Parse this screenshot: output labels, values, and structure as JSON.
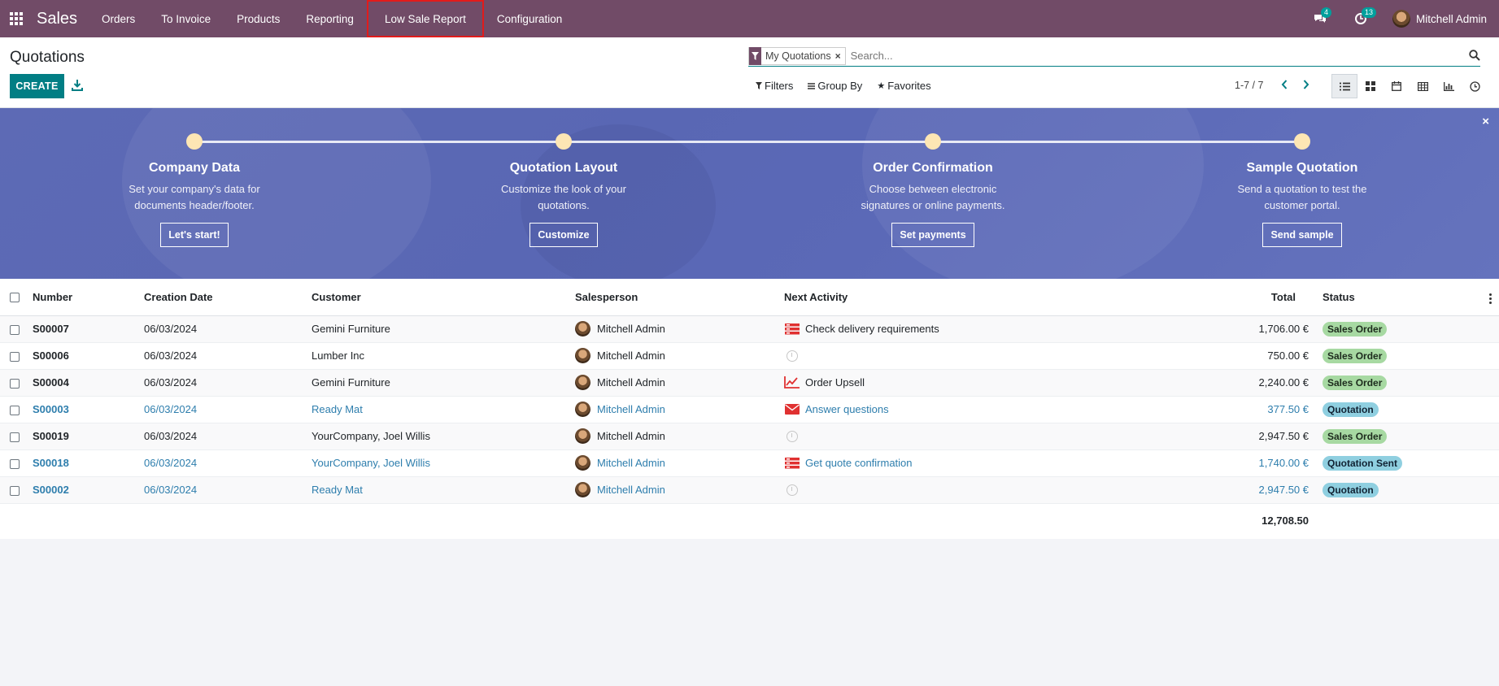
{
  "navbar": {
    "app_name": "Sales",
    "menu": [
      "Orders",
      "To Invoice",
      "Products",
      "Reporting",
      "Low Sale Report",
      "Configuration"
    ],
    "messages_count": "4",
    "activities_count": "13",
    "user_name": "Mitchell Admin",
    "brand_color": "#714b67"
  },
  "control_panel": {
    "title": "Quotations",
    "create_label": "CREATE",
    "search": {
      "facet": "My Quotations",
      "facet_remove": "×",
      "placeholder": "Search..."
    },
    "filters": [
      "Filters",
      "Group By",
      "Favorites"
    ],
    "pager": "1-7 / 7",
    "views": [
      "list-icon",
      "kanban-icon",
      "calendar-icon",
      "pivot-icon",
      "graph-icon",
      "activity-icon"
    ]
  },
  "onboarding": {
    "close": "×",
    "steps": [
      {
        "title": "Company Data",
        "desc1": "Set your company's data for",
        "desc2": "documents header/footer.",
        "button": "Let's start!"
      },
      {
        "title": "Quotation Layout",
        "desc1": "Customize the look of your",
        "desc2": "quotations.",
        "button": "Customize"
      },
      {
        "title": "Order Confirmation",
        "desc1": "Choose between electronic",
        "desc2": "signatures or online payments.",
        "button": "Set payments"
      },
      {
        "title": "Sample Quotation",
        "desc1": "Send a quotation to test the",
        "desc2": "customer portal.",
        "button": "Send sample"
      }
    ]
  },
  "table": {
    "headers": {
      "number": "Number",
      "date": "Creation Date",
      "customer": "Customer",
      "salesperson": "Salesperson",
      "activity": "Next Activity",
      "total": "Total",
      "status": "Status"
    },
    "rows": [
      {
        "number": "S00007",
        "date": "06/03/2024",
        "customer": "Gemini Furniture",
        "salesperson": "Mitchell Admin",
        "activity": "Check delivery requirements",
        "activity_icon": "tasks-icon",
        "total": "1,706.00 €",
        "status": "Sales Order"
      },
      {
        "number": "S00006",
        "date": "06/03/2024",
        "customer": "Lumber Inc",
        "salesperson": "Mitchell Admin",
        "activity": "",
        "activity_icon": "clock-icon",
        "total": "750.00 €",
        "status": "Sales Order"
      },
      {
        "number": "S00004",
        "date": "06/03/2024",
        "customer": "Gemini Furniture",
        "salesperson": "Mitchell Admin",
        "activity": "Order Upsell",
        "activity_icon": "upsell-chart-icon",
        "total": "2,240.00 €",
        "status": "Sales Order"
      },
      {
        "number": "S00003",
        "date": "06/03/2024",
        "customer": "Ready Mat",
        "salesperson": "Mitchell Admin",
        "activity": "Answer questions",
        "activity_icon": "envelope-icon",
        "total": "377.50 €",
        "status": "Quotation"
      },
      {
        "number": "S00019",
        "date": "06/03/2024",
        "customer": "YourCompany, Joel Willis",
        "salesperson": "Mitchell Admin",
        "activity": "",
        "activity_icon": "clock-icon",
        "total": "2,947.50 €",
        "status": "Sales Order"
      },
      {
        "number": "S00018",
        "date": "06/03/2024",
        "customer": "YourCompany, Joel Willis",
        "salesperson": "Mitchell Admin",
        "activity": "Get quote confirmation",
        "activity_icon": "tasks-icon",
        "total": "1,740.00 €",
        "status": "Quotation Sent"
      },
      {
        "number": "S00002",
        "date": "06/03/2024",
        "customer": "Ready Mat",
        "salesperson": "Mitchell Admin",
        "activity": "",
        "activity_icon": "clock-icon",
        "total": "2,947.50 €",
        "status": "Quotation"
      }
    ],
    "grand_total": "12,708.50",
    "link_color": "#2e7ead",
    "status_colors": {
      "sales_order": "#a7d9a2",
      "quotation": "#8fcfe0"
    }
  }
}
